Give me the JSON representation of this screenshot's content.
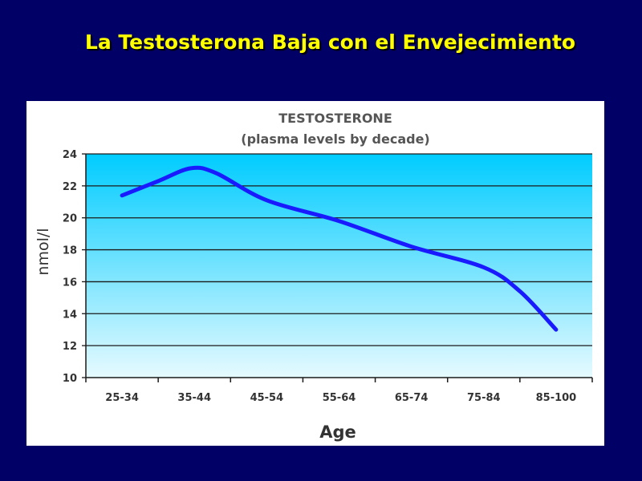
{
  "slide": {
    "title": "La Testosterona  Baja con el Envejecimiento"
  },
  "chart_data": {
    "type": "line",
    "title": "TESTOSTERONE",
    "subtitle": "(plasma levels by decade)",
    "xlabel": "Age",
    "ylabel": "nmol/l",
    "categories": [
      "25-34",
      "35-44",
      "45-54",
      "55-64",
      "65-74",
      "75-84",
      "85-100"
    ],
    "x": [
      0,
      0.5,
      0.95,
      1.3,
      2,
      3,
      4,
      5,
      5.5,
      6
    ],
    "values": [
      21.4,
      22.3,
      23.1,
      22.8,
      21.1,
      19.8,
      18.2,
      16.9,
      15.4,
      13.0
    ],
    "ylim": [
      10,
      24
    ],
    "yticks": [
      10,
      12,
      14,
      16,
      18,
      20,
      22,
      24
    ],
    "grid": true,
    "legend": "none",
    "colors": {
      "line": "#1a1aff",
      "plot_top": "#00ccff",
      "plot_bottom": "#e6faff",
      "grid": "#1a1a1a",
      "text": "#333333",
      "title_text": "#555555"
    }
  }
}
